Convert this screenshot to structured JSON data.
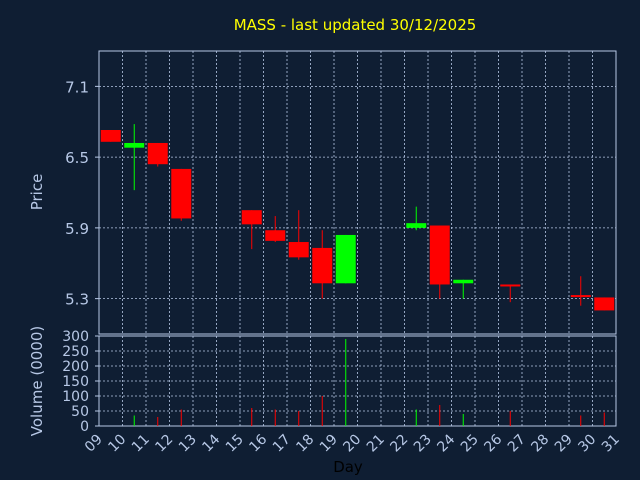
{
  "chart_data": {
    "type": "candlestick",
    "title": "MASS - last updated 30/12/2025",
    "xlabel": "Day",
    "price_axis": {
      "label": "Price",
      "ticks": [
        7.1,
        6.5,
        5.9,
        5.3
      ],
      "ylim": [
        5.0,
        7.4
      ]
    },
    "volume_axis": {
      "label": "Volume (0000)",
      "ticks": [
        0,
        50,
        100,
        150,
        200,
        250,
        300
      ],
      "ylim": [
        0,
        300
      ]
    },
    "x_ticks": [
      "09",
      "10",
      "11",
      "12",
      "13",
      "14",
      "15",
      "16",
      "17",
      "18",
      "19",
      "20",
      "21",
      "22",
      "23",
      "24",
      "25",
      "26",
      "27",
      "28",
      "29",
      "30",
      "31"
    ],
    "grid": true,
    "colors": {
      "up": "#00ff00",
      "down": "#ff0000",
      "title": "#ffff00",
      "background": "#0f1e33",
      "grid": "#b7c8e6"
    },
    "candles": [
      {
        "day": "09",
        "open": 6.73,
        "close": 6.63,
        "high": 6.73,
        "low": 6.63
      },
      {
        "day": "10",
        "open": 6.58,
        "close": 6.62,
        "high": 6.78,
        "low": 6.22
      },
      {
        "day": "11",
        "open": 6.62,
        "close": 6.44,
        "high": 6.62,
        "low": 6.42
      },
      {
        "day": "12",
        "open": 6.4,
        "close": 5.98,
        "high": 6.4,
        "low": 5.96
      },
      {
        "day": "15",
        "open": 6.05,
        "close": 5.93,
        "high": 6.05,
        "low": 5.72
      },
      {
        "day": "16",
        "open": 5.88,
        "close": 5.79,
        "high": 6.0,
        "low": 5.78
      },
      {
        "day": "17",
        "open": 5.78,
        "close": 5.65,
        "high": 6.05,
        "low": 5.63
      },
      {
        "day": "18",
        "open": 5.73,
        "close": 5.43,
        "high": 5.88,
        "low": 5.3
      },
      {
        "day": "19",
        "open": 5.43,
        "close": 5.84,
        "high": 5.84,
        "low": 5.43
      },
      {
        "day": "22",
        "open": 5.9,
        "close": 5.94,
        "high": 6.08,
        "low": 5.88
      },
      {
        "day": "23",
        "open": 5.92,
        "close": 5.42,
        "high": 5.92,
        "low": 5.3
      },
      {
        "day": "24",
        "open": 5.43,
        "close": 5.46,
        "high": 5.46,
        "low": 5.3
      },
      {
        "day": "26",
        "open": 5.42,
        "close": 5.41,
        "high": 5.42,
        "low": 5.27
      },
      {
        "day": "29",
        "open": 5.33,
        "close": 5.32,
        "high": 5.49,
        "low": 5.24
      },
      {
        "day": "30",
        "open": 5.31,
        "close": 5.2,
        "high": 5.31,
        "low": 5.2
      }
    ],
    "volume": [
      {
        "day": "10",
        "value": 35
      },
      {
        "day": "11",
        "value": 30
      },
      {
        "day": "12",
        "value": 55
      },
      {
        "day": "15",
        "value": 60
      },
      {
        "day": "16",
        "value": 55
      },
      {
        "day": "17",
        "value": 50
      },
      {
        "day": "18",
        "value": 100
      },
      {
        "day": "19",
        "value": 290
      },
      {
        "day": "22",
        "value": 55
      },
      {
        "day": "23",
        "value": 70
      },
      {
        "day": "24",
        "value": 40
      },
      {
        "day": "26",
        "value": 50
      },
      {
        "day": "29",
        "value": 35
      },
      {
        "day": "30",
        "value": 45
      }
    ]
  }
}
